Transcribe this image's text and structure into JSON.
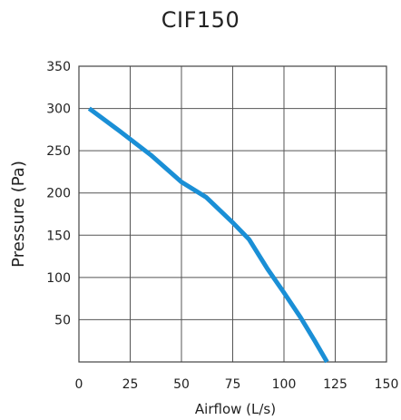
{
  "chart_data": {
    "type": "line",
    "title": "CIF150",
    "xlabel": "Airflow (L/s)",
    "ylabel": "Pressure (Pa)",
    "xlim": [
      0,
      150
    ],
    "ylim": [
      0,
      350
    ],
    "xticks": [
      0,
      25,
      50,
      75,
      100,
      125,
      150
    ],
    "yticks": [
      50,
      100,
      150,
      200,
      250,
      300,
      350
    ],
    "grid": true,
    "series": [
      {
        "color": "#1a8fd6",
        "x": [
          5,
          20,
          35,
          50,
          62,
          75,
          83,
          92,
          100,
          108,
          115,
          121
        ],
        "y": [
          300,
          273,
          245,
          213,
          195,
          165,
          145,
          110,
          82,
          53,
          25,
          0
        ]
      }
    ]
  }
}
